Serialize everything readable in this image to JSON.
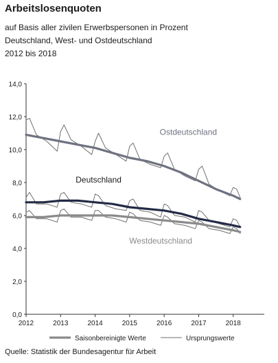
{
  "title": "Arbeitslosenquoten",
  "subtitle_lines": [
    "auf Basis aller zivilen Erwerbspersonen in Prozent",
    "Deutschland, West- und Ostdeutschland",
    "2012 bis 2018"
  ],
  "source": "Quelle: Statistik der Bundesagentur für Arbeit",
  "colors": {
    "ost_seasonal": "#6e7280",
    "deutschland_seasonal": "#232a45",
    "west_seasonal": "#8a8a8a",
    "raw": "#6e6e6e"
  },
  "chart_data": {
    "type": "line",
    "title": "Arbeitslosenquoten",
    "ylim": [
      0,
      14
    ],
    "yticks": [
      "0,0",
      "2,0",
      "4,0",
      "6,0",
      "8,0",
      "10,0",
      "12,0",
      "14,0"
    ],
    "xlim": [
      2012.0,
      2018.9
    ],
    "xticks": [
      "2012",
      "2013",
      "2014",
      "2015",
      "2016",
      "2017",
      "2018"
    ],
    "grid": false,
    "legend": {
      "position": "bottom",
      "seasonal_label": "Saisonbereinigte Werte",
      "raw_label": "Ursprungswerte"
    },
    "series": [
      {
        "name": "Ostdeutschland",
        "kind": "seasonal",
        "x": [
          2012.0,
          2012.5,
          2013.0,
          2013.5,
          2014.0,
          2014.5,
          2015.0,
          2015.5,
          2016.0,
          2016.5,
          2017.0,
          2017.5,
          2018.0,
          2018.2
        ],
        "y": [
          10.9,
          10.7,
          10.5,
          10.3,
          10.1,
          9.8,
          9.5,
          9.3,
          9.0,
          8.6,
          8.1,
          7.6,
          7.2,
          7.0
        ]
      },
      {
        "name": "Ostdeutschland",
        "kind": "raw",
        "x": [
          2012.0,
          2012.1,
          2012.3,
          2012.6,
          2012.9,
          2013.0,
          2013.1,
          2013.3,
          2013.6,
          2013.9,
          2014.0,
          2014.1,
          2014.3,
          2014.6,
          2014.9,
          2015.0,
          2015.1,
          2015.3,
          2015.6,
          2015.9,
          2016.0,
          2016.1,
          2016.3,
          2016.6,
          2016.9,
          2017.0,
          2017.1,
          2017.3,
          2017.6,
          2017.9,
          2018.0,
          2018.1,
          2018.2
        ],
        "y": [
          11.8,
          11.9,
          10.9,
          10.5,
          9.9,
          11.1,
          11.5,
          10.6,
          10.2,
          9.7,
          10.5,
          11.0,
          10.1,
          9.7,
          9.3,
          10.2,
          10.4,
          9.4,
          9.1,
          8.9,
          9.6,
          9.8,
          8.8,
          8.4,
          8.1,
          8.8,
          9.0,
          7.9,
          7.5,
          7.2,
          7.7,
          7.6,
          7.1
        ]
      },
      {
        "name": "Deutschland",
        "kind": "seasonal",
        "x": [
          2012.0,
          2012.5,
          2013.0,
          2013.5,
          2014.0,
          2014.5,
          2015.0,
          2015.5,
          2016.0,
          2016.5,
          2017.0,
          2017.5,
          2018.0,
          2018.2
        ],
        "y": [
          6.8,
          6.8,
          6.9,
          6.9,
          6.8,
          6.7,
          6.5,
          6.4,
          6.3,
          6.1,
          5.8,
          5.6,
          5.4,
          5.3
        ]
      },
      {
        "name": "Deutschland",
        "kind": "raw",
        "x": [
          2012.0,
          2012.1,
          2012.3,
          2012.6,
          2012.9,
          2013.0,
          2013.1,
          2013.3,
          2013.6,
          2013.9,
          2014.0,
          2014.1,
          2014.3,
          2014.6,
          2014.9,
          2015.0,
          2015.1,
          2015.3,
          2015.6,
          2015.9,
          2016.0,
          2016.1,
          2016.3,
          2016.6,
          2016.9,
          2017.0,
          2017.1,
          2017.3,
          2017.6,
          2017.9,
          2018.0,
          2018.1,
          2018.2
        ],
        "y": [
          7.1,
          7.4,
          6.7,
          6.7,
          6.5,
          7.3,
          7.4,
          6.8,
          6.7,
          6.5,
          7.3,
          7.2,
          6.6,
          6.4,
          6.3,
          6.9,
          7.0,
          6.3,
          6.2,
          5.9,
          6.7,
          6.6,
          6.0,
          5.9,
          5.6,
          6.3,
          6.2,
          5.7,
          5.5,
          5.3,
          5.8,
          5.7,
          5.3
        ]
      },
      {
        "name": "Westdeutschland",
        "kind": "seasonal",
        "x": [
          2012.0,
          2012.5,
          2013.0,
          2013.5,
          2014.0,
          2014.5,
          2015.0,
          2015.5,
          2016.0,
          2016.5,
          2017.0,
          2017.5,
          2018.0,
          2018.2
        ],
        "y": [
          5.9,
          5.9,
          6.0,
          6.0,
          6.0,
          6.0,
          5.9,
          5.8,
          5.7,
          5.6,
          5.5,
          5.3,
          5.1,
          5.0
        ]
      },
      {
        "name": "Westdeutschland",
        "kind": "raw",
        "x": [
          2012.0,
          2012.1,
          2012.3,
          2012.6,
          2012.9,
          2013.0,
          2013.1,
          2013.3,
          2013.6,
          2013.9,
          2014.0,
          2014.1,
          2014.3,
          2014.6,
          2014.9,
          2015.0,
          2015.1,
          2015.3,
          2015.6,
          2015.9,
          2016.0,
          2016.1,
          2016.3,
          2016.6,
          2016.9,
          2017.0,
          2017.1,
          2017.3,
          2017.6,
          2017.9,
          2018.0,
          2018.1,
          2018.2
        ],
        "y": [
          6.2,
          6.3,
          5.8,
          5.8,
          5.6,
          6.3,
          6.4,
          5.9,
          5.9,
          5.7,
          6.3,
          6.3,
          5.9,
          5.8,
          5.6,
          6.2,
          6.1,
          5.7,
          5.6,
          5.4,
          6.0,
          5.9,
          5.5,
          5.4,
          5.2,
          5.7,
          5.6,
          5.2,
          5.1,
          4.9,
          5.3,
          5.2,
          4.9
        ]
      }
    ],
    "annotations": [
      {
        "text": "Ostdeutschland",
        "x": 2016.7,
        "y": 10.9,
        "color": "#6e7280"
      },
      {
        "text": "Deutschland",
        "x": 2014.1,
        "y": 8.0,
        "color": "#1a1a1a"
      },
      {
        "text": "Westdeutschland",
        "x": 2015.9,
        "y": 4.3,
        "color": "#8a8a8a"
      }
    ]
  }
}
